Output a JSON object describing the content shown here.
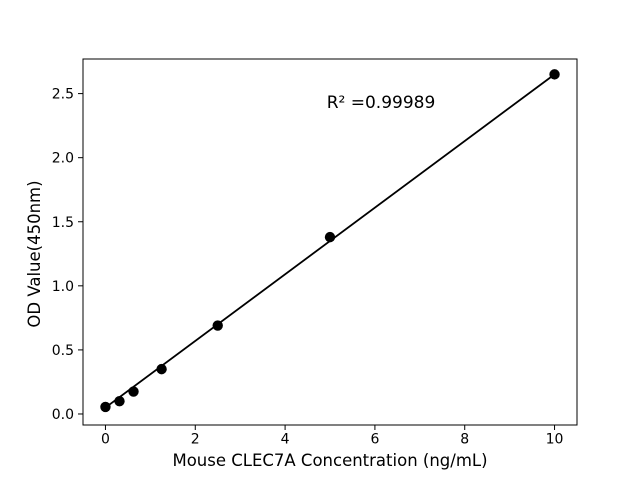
{
  "figure": {
    "background": "#ffffff"
  },
  "chart_data": {
    "type": "scatter",
    "title": "",
    "xlabel": "Mouse CLEC7A Concentration (ng/mL)",
    "ylabel": "OD Value(450nm)",
    "annotation": "R² =0.99989",
    "r_squared": 0.99989,
    "x": [
      0,
      0.3125,
      0.625,
      1.25,
      2.5,
      5,
      10
    ],
    "y": [
      0.055,
      0.1,
      0.175,
      0.35,
      0.69,
      1.38,
      2.65
    ],
    "fit_line": {
      "x1": 0,
      "y1": 0.05,
      "x2": 10,
      "y2": 2.65
    },
    "x_ticks": [
      0,
      2,
      4,
      6,
      8,
      10
    ],
    "y_ticks": [
      0.0,
      0.5,
      1.0,
      1.5,
      2.0,
      2.5
    ],
    "xlim": [
      -0.5,
      10.5
    ],
    "ylim": [
      -0.086,
      2.77
    ],
    "grid": false,
    "legend": false,
    "marker_color": "#000000",
    "line_color": "#000000",
    "text_color": "#000000"
  }
}
